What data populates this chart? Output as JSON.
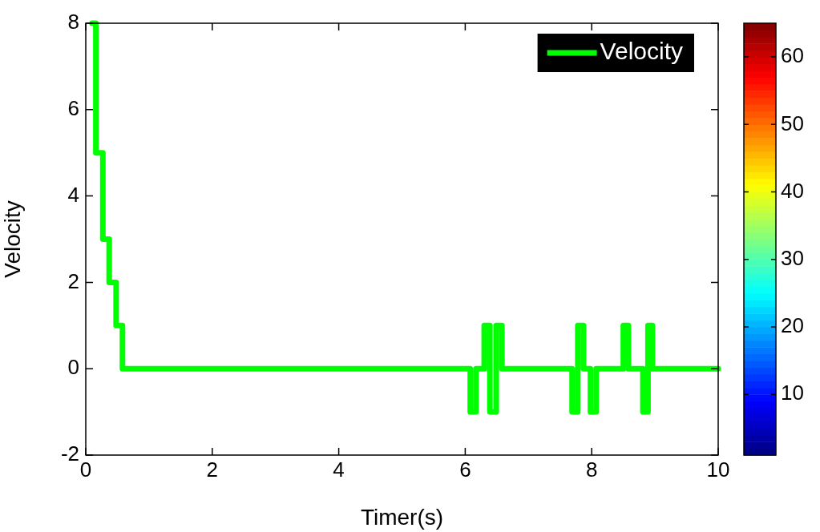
{
  "chart_data": {
    "type": "line",
    "xlabel": "Timer(s)",
    "ylabel": "Velocity",
    "x": [
      0.1,
      0.16,
      0.16,
      0.27,
      0.27,
      0.37,
      0.37,
      0.48,
      0.48,
      0.58,
      0.58,
      6.08,
      6.08,
      6.17,
      6.17,
      6.3,
      6.3,
      6.39,
      6.39,
      6.49,
      6.49,
      6.58,
      6.58,
      7.69,
      7.69,
      7.78,
      7.78,
      7.87,
      7.87,
      7.98,
      7.98,
      8.07,
      8.07,
      8.5,
      8.5,
      8.58,
      8.58,
      8.81,
      8.81,
      8.89,
      8.89,
      8.96,
      8.96,
      10
    ],
    "series": [
      {
        "name": "Velocity",
        "color": "#00ff00",
        "values": [
          8,
          8,
          5,
          5,
          3,
          3,
          2,
          2,
          1,
          1,
          0,
          0,
          -1,
          -1,
          0,
          0,
          1,
          1,
          -1,
          -1,
          1,
          1,
          0,
          0,
          -1,
          -1,
          1,
          1,
          0,
          0,
          -1,
          -1,
          0,
          0,
          1,
          1,
          0,
          0,
          -1,
          -1,
          1,
          1,
          0,
          0
        ]
      }
    ],
    "xlim": [
      0,
      10
    ],
    "xticks": [
      0,
      2,
      4,
      6,
      8,
      10
    ],
    "ylim": [
      -2,
      8
    ],
    "yticks": [
      -2,
      0,
      2,
      4,
      6,
      8
    ],
    "clim": [
      1,
      65
    ],
    "cticks": [
      10,
      20,
      30,
      40,
      50,
      60
    ],
    "legend": "top right",
    "grid": false,
    "marker": "none",
    "line_style": "solid"
  }
}
